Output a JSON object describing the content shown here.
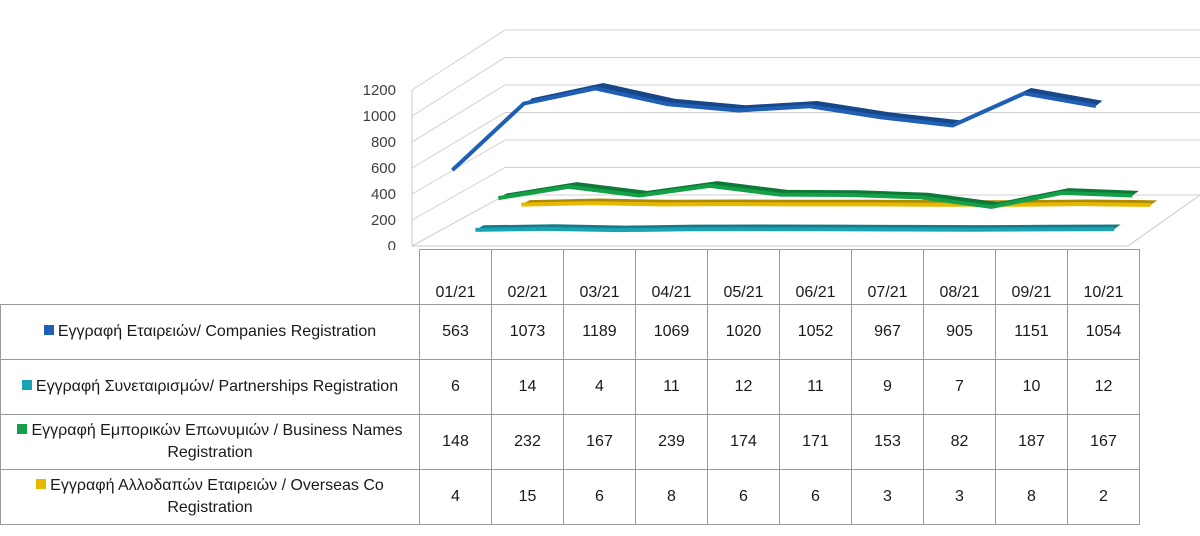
{
  "chart_data": {
    "type": "line",
    "categories": [
      "01/21",
      "02/21",
      "03/21",
      "04/21",
      "05/21",
      "06/21",
      "07/21",
      "08/21",
      "09/21",
      "10/21"
    ],
    "ylim": [
      0,
      1200
    ],
    "yticks": [
      "0",
      "200",
      "400",
      "600",
      "800",
      "1000",
      "1200"
    ],
    "grid": true,
    "series": [
      {
        "name": "Εγγραφή Εταιρειών/ Companies Registration",
        "color": "#1f5fb5",
        "values": [
          563,
          1073,
          1189,
          1069,
          1020,
          1052,
          967,
          905,
          1151,
          1054
        ]
      },
      {
        "name": "Εγγραφή Συνεταιρισμών/ Partnerships Registration",
        "color": "#1aa3b5",
        "values": [
          6,
          14,
          4,
          11,
          12,
          11,
          9,
          7,
          10,
          12
        ]
      },
      {
        "name": "Εγγραφή Εμπορικών Επωνυμιών / Business Names Registration",
        "color": "#13a049",
        "values": [
          148,
          232,
          167,
          239,
          174,
          171,
          153,
          82,
          187,
          167
        ]
      },
      {
        "name": "Εγγραφή Αλλοδαπών Εταιρειών / Overseas Co Registration",
        "color": "#e6b800",
        "values": [
          4,
          15,
          6,
          8,
          6,
          6,
          3,
          3,
          8,
          2
        ]
      }
    ]
  }
}
